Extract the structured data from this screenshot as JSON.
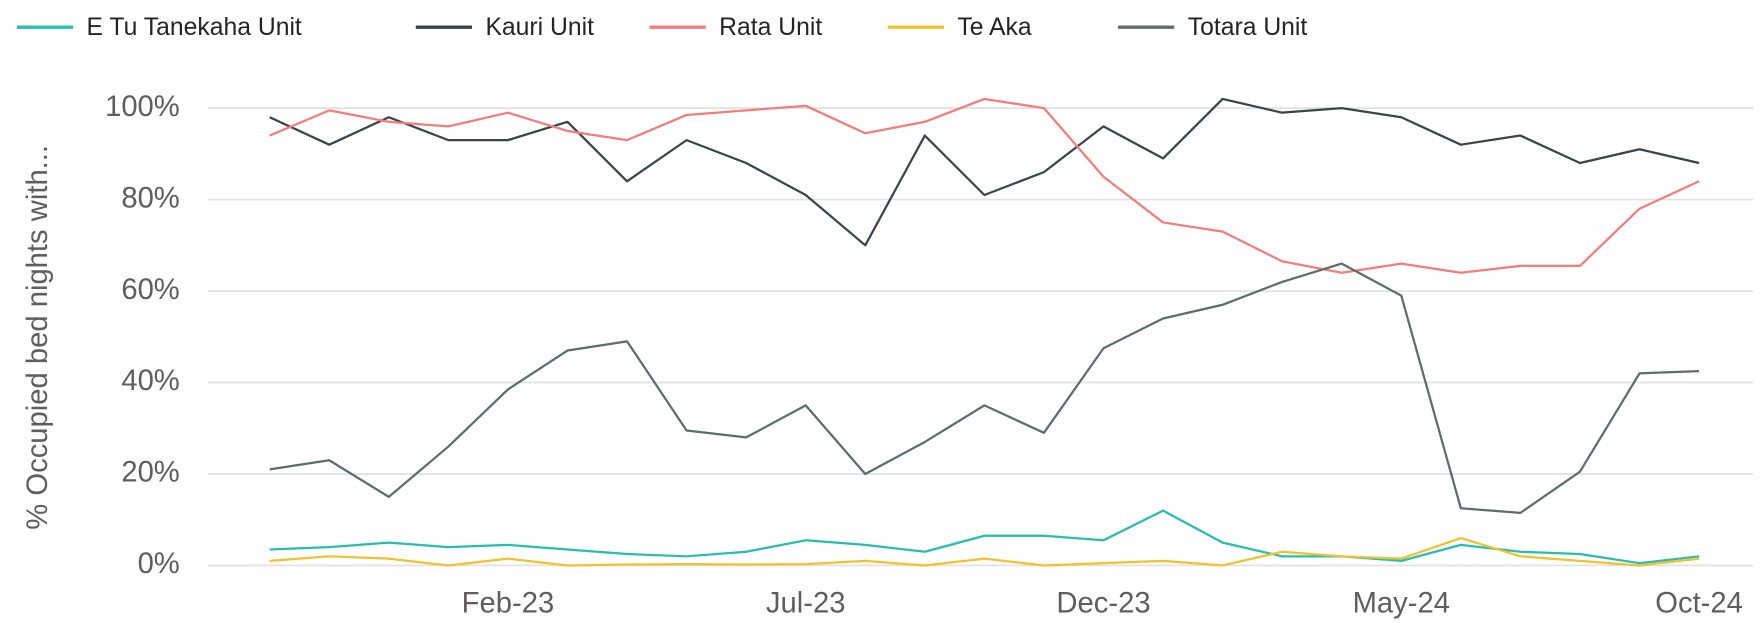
{
  "chart_data": {
    "type": "line",
    "y_label": "% Occupied bed nights with...",
    "categories": [
      null,
      null,
      null,
      null,
      "Feb-23",
      null,
      null,
      null,
      null,
      "Jul-23",
      null,
      null,
      null,
      null,
      "Dec-23",
      null,
      null,
      null,
      null,
      "May-24",
      null,
      null,
      null,
      null,
      "Oct-24"
    ],
    "series": [
      {
        "name": "E Tu Tanekaha Unit",
        "color": "#26bfae",
        "values": [
          3.5,
          4,
          5,
          4,
          4.5,
          3.5,
          2.5,
          2,
          3,
          5.5,
          4.5,
          3,
          6.5,
          6.5,
          5.5,
          12,
          5,
          2,
          2,
          1,
          4.5,
          3,
          2.5,
          0.5,
          2
        ]
      },
      {
        "name": "Kauri Unit",
        "color": "#3a4449",
        "values": [
          98,
          92,
          98,
          93,
          93,
          97,
          84,
          93,
          88,
          81,
          70,
          94,
          81,
          86,
          96,
          89,
          102,
          99,
          100,
          98,
          92,
          94,
          88,
          91,
          88
        ]
      },
      {
        "name": "Rata Unit",
        "color": "#f47c7c",
        "values": [
          94,
          99.5,
          97,
          96,
          99,
          95,
          93,
          98.5,
          99.5,
          100.5,
          94.5,
          97,
          102,
          100,
          85,
          75,
          73,
          66.5,
          64,
          66,
          64,
          65.5,
          65.5,
          78,
          84
        ]
      },
      {
        "name": "Te Aka",
        "color": "#f2c12e",
        "values": [
          1,
          2,
          1.5,
          0,
          1.5,
          0,
          0.2,
          0.3,
          0.2,
          0.3,
          1,
          0,
          1.5,
          0,
          0.5,
          1,
          0,
          3,
          2,
          1.5,
          6,
          2,
          1,
          0,
          1.5
        ]
      },
      {
        "name": "Totara Unit",
        "color": "#5f6b6d",
        "values": [
          21,
          23,
          15,
          26,
          38.5,
          47,
          49,
          29.5,
          28,
          35,
          20,
          27,
          35,
          29,
          47.5,
          54,
          57,
          62,
          66,
          59,
          12.5,
          11.5,
          20.5,
          42,
          42.5
        ]
      }
    ],
    "ylim": [
      0,
      105
    ],
    "yticks": [
      {
        "value": 0,
        "label": "0%"
      },
      {
        "value": 20,
        "label": "20%"
      },
      {
        "value": 40,
        "label": "40%"
      },
      {
        "value": 60,
        "label": "60%"
      },
      {
        "value": 80,
        "label": "80%"
      },
      {
        "value": 100,
        "label": "100%"
      }
    ],
    "grid": true,
    "legend": "top"
  }
}
